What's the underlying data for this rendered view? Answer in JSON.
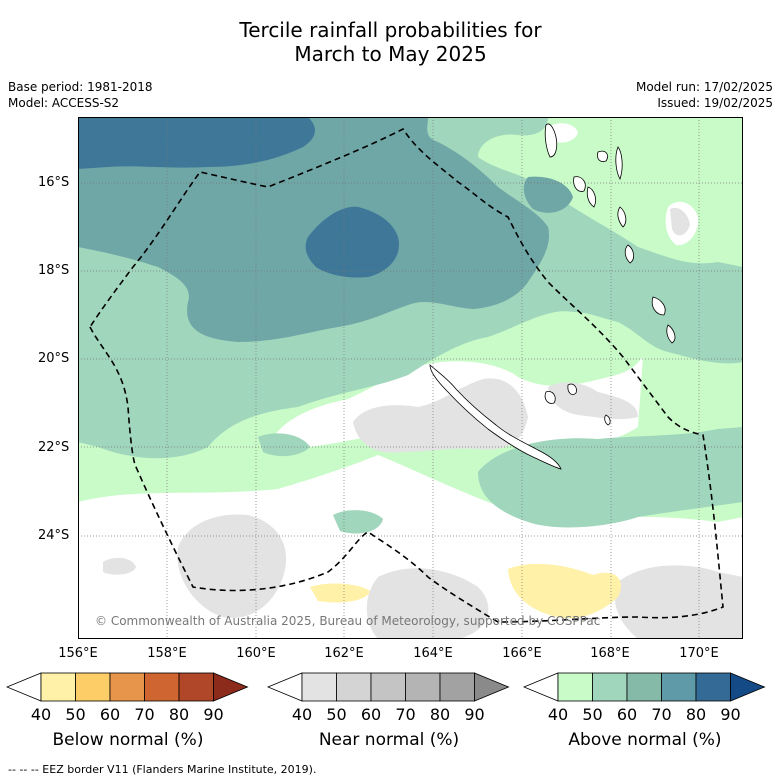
{
  "title_line1": "Tercile rainfall probabilities for",
  "title_line2": "March to May 2025",
  "meta_left": [
    "Base period: 1981-2018",
    "Model: ACCESS-S2"
  ],
  "meta_right": [
    "Model run: 17/02/2025",
    "Issued: 19/02/2025"
  ],
  "lat_labels": [
    "16°S",
    "18°S",
    "20°S",
    "22°S",
    "24°S"
  ],
  "lon_labels": [
    "156°E",
    "158°E",
    "160°E",
    "162°E",
    "164°E",
    "166°E",
    "168°E",
    "170°E"
  ],
  "copyright": "© Commonwealth of Australia 2025, Bureau of Meteorology, supported by COSPPac",
  "footer": "-- -- -- EEZ border V11 (Flanders Marine Institute, 2019).",
  "colorbars": [
    {
      "title": "Below normal (%)",
      "ticks": [
        "40",
        "50",
        "60",
        "70",
        "80",
        "90"
      ],
      "colors": [
        "#ffffff",
        "#fff2a8",
        "#fdcd67",
        "#e6954a",
        "#cf6631",
        "#b04729",
        "#8c2a1c"
      ]
    },
    {
      "title": "Near normal (%)",
      "ticks": [
        "40",
        "50",
        "60",
        "70",
        "80",
        "90"
      ],
      "colors": [
        "#ffffff",
        "#e3e3e3",
        "#d4d4d4",
        "#c4c4c4",
        "#b4b4b4",
        "#a2a2a2",
        "#8a8a8a"
      ]
    },
    {
      "title": "Above normal (%)",
      "ticks": [
        "40",
        "50",
        "60",
        "70",
        "80",
        "90"
      ],
      "colors": [
        "#ffffff",
        "#c8fbc8",
        "#a0d6bc",
        "#86baa8",
        "#5e9aa8",
        "#336a96",
        "#144a86"
      ]
    }
  ],
  "map_colors": {
    "above_40": "#c8fbc8",
    "above_50": "#a0d6bc",
    "above_60": "#6fa6a6",
    "above_70": "#3f7799",
    "near_40": "#e3e3e3",
    "below_40": "#fff2a8",
    "land": "#ffffff"
  }
}
